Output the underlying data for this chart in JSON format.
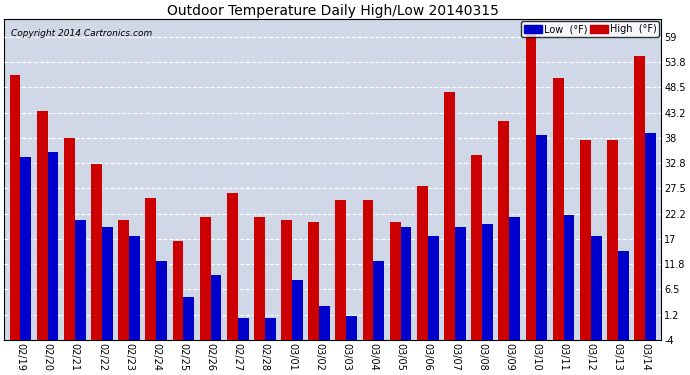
{
  "title": "Outdoor Temperature Daily High/Low 20140315",
  "copyright": "Copyright 2014 Cartronics.com",
  "legend_low": "Low  (°F)",
  "legend_high": "High  (°F)",
  "low_color": "#0000cc",
  "high_color": "#cc0000",
  "background_color": "#ffffff",
  "plot_background": "#d0d8e8",
  "grid_color": "#ffffff",
  "ylim": [
    -4.0,
    62.6
  ],
  "yticks": [
    -4.0,
    1.2,
    6.5,
    11.8,
    17.0,
    22.2,
    27.5,
    32.8,
    38.0,
    43.2,
    48.5,
    53.8,
    59.0
  ],
  "categories": [
    "02/19",
    "02/20",
    "02/21",
    "02/22",
    "02/23",
    "02/24",
    "02/25",
    "02/26",
    "02/27",
    "02/28",
    "03/01",
    "03/02",
    "03/03",
    "03/04",
    "03/05",
    "03/06",
    "03/07",
    "03/08",
    "03/09",
    "03/10",
    "03/11",
    "03/12",
    "03/13",
    "03/14"
  ],
  "high_values": [
    51.0,
    43.5,
    38.0,
    32.5,
    21.0,
    25.5,
    16.5,
    21.5,
    26.5,
    21.5,
    21.0,
    20.5,
    25.0,
    25.0,
    20.5,
    28.0,
    47.5,
    34.5,
    41.5,
    60.0,
    50.5,
    37.5,
    37.5,
    55.0
  ],
  "low_values": [
    34.0,
    35.0,
    21.0,
    19.5,
    17.5,
    12.5,
    5.0,
    9.5,
    0.5,
    0.5,
    8.5,
    3.0,
    1.0,
    12.5,
    19.5,
    17.5,
    19.5,
    20.0,
    21.5,
    38.5,
    22.0,
    17.5,
    14.5,
    39.0
  ],
  "bar_bottom": -4.0,
  "figsize": [
    6.9,
    3.75
  ],
  "dpi": 100
}
